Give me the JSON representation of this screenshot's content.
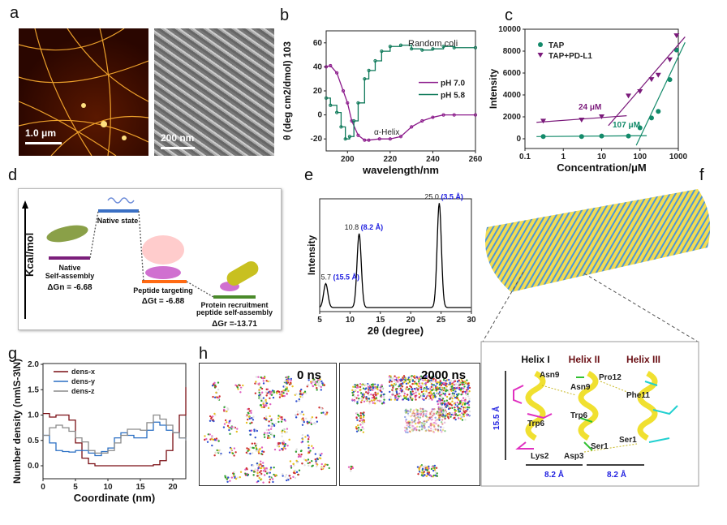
{
  "panel_labels": [
    "a",
    "b",
    "c",
    "d",
    "e",
    "f",
    "g",
    "h"
  ],
  "panel_a": {
    "afm_scale": "1.0 μm",
    "sem_scale": "200 nm"
  },
  "panel_d": {
    "ylabel": "Kcal/mol",
    "native_state": "Native state",
    "native_sa_1": "Native",
    "native_sa_2": "Self-assembly",
    "dgn": "ΔGn = -6.68",
    "targeting": "Peptide targeting",
    "dgt": "ΔGt = -6.88",
    "recruit_1": "Protein recruitment",
    "recruit_2": "peptide self-assembly",
    "dgr": "ΔGr =-13.71",
    "colors": {
      "native_sa": "#7b1f7b",
      "native_state": "#3a6fc4",
      "targeting": "#ff6a13",
      "recruit": "#4a8a2a"
    }
  },
  "panel_f": {
    "helix1": "Helix I",
    "helix2": "Helix II",
    "helix3": "Helix III",
    "height": "15.5 Å",
    "width1": "8.2 Å",
    "width2": "8.2 Å",
    "residues": [
      "Asn9",
      "Asn9",
      "Pro12",
      "Phe11",
      "Trp6",
      "Trp6",
      "Lys2",
      "Asp3",
      "Ser1",
      "Ser1"
    ]
  },
  "panel_h": {
    "t0": "0 ns",
    "t1": "2000 ns"
  },
  "chart_data": [
    {
      "panel": "b",
      "type": "line",
      "xlabel": "wavelength/nm",
      "ylabel": "θ (deg cm2/dmol) 103",
      "xlim": [
        190,
        260
      ],
      "ylim": [
        -30,
        70
      ],
      "xticks": [
        200,
        220,
        240,
        260
      ],
      "yticks": [
        -20,
        0,
        20,
        40,
        60
      ],
      "legend": "center-right",
      "annotations": [
        "Random coli",
        "α-Helix"
      ],
      "series": [
        {
          "name": "pH 7.0",
          "color": "#8b1a8b",
          "x": [
            190,
            192,
            195,
            198,
            200,
            202,
            205,
            208,
            210,
            215,
            220,
            225,
            230,
            235,
            240,
            245,
            250,
            260
          ],
          "y": [
            40,
            41,
            35,
            20,
            10,
            -5,
            -17,
            -21,
            -21,
            -20,
            -20,
            -18,
            -10,
            -5,
            -2,
            0,
            0,
            0
          ]
        },
        {
          "name": "pH 5.8",
          "color": "#0f7a5a",
          "x": [
            190,
            192,
            195,
            197,
            199,
            201,
            203,
            205,
            208,
            210,
            213,
            216,
            220,
            225,
            230,
            235,
            240,
            245,
            250,
            260
          ],
          "y": [
            14,
            8,
            2,
            -10,
            -20,
            -18,
            -5,
            10,
            30,
            37,
            45,
            53,
            57,
            58,
            55,
            54,
            55,
            57,
            56,
            56
          ]
        }
      ]
    },
    {
      "panel": "c",
      "type": "scatter",
      "xlabel": "Concentration/μM",
      "ylabel": "Intensity",
      "xscale": "log",
      "xlim": [
        0.1,
        1500
      ],
      "ylim": [
        -1000,
        10000
      ],
      "xticks": [
        "0.1",
        "1",
        "10",
        "100",
        "1000"
      ],
      "yticks": [
        0,
        2000,
        4000,
        6000,
        8000,
        10000
      ],
      "legend": "top-left",
      "annotations": [
        "24 μM",
        "107 μM"
      ],
      "series": [
        {
          "name": "TAP",
          "marker": "circle",
          "color": "#138a6a",
          "x": [
            0.3,
            3,
            10,
            50,
            100,
            200,
            300,
            600,
            900
          ],
          "y": [
            200,
            200,
            250,
            250,
            1000,
            1900,
            2500,
            5400,
            8100
          ],
          "fit_lines": [
            [
              [
                0.2,
                200
              ],
              [
                150,
                280
              ]
            ],
            [
              [
                80,
                -600
              ],
              [
                1500,
                8800
              ]
            ]
          ]
        },
        {
          "name": "TAP+PD-L1",
          "marker": "triangle-down",
          "color": "#7b1a7b",
          "x": [
            0.3,
            3,
            10,
            50,
            100,
            200,
            300,
            600,
            900
          ],
          "y": [
            1600,
            1700,
            2000,
            3900,
            4300,
            5400,
            5800,
            7200,
            9400
          ],
          "fit_lines": [
            [
              [
                0.2,
                1500
              ],
              [
                45,
                2100
              ]
            ],
            [
              [
                15,
                1200
              ],
              [
                1500,
                9300
              ]
            ]
          ]
        }
      ]
    },
    {
      "panel": "e",
      "type": "line",
      "xlabel": "2θ (degree)",
      "ylabel": "Intensity",
      "xlim": [
        5,
        30
      ],
      "xticks": [
        5,
        10,
        15,
        20,
        25,
        30
      ],
      "peaks": [
        {
          "x": 6.0,
          "rel_intensity": 0.22,
          "label": "5.7",
          "d": "(15.5 Å)"
        },
        {
          "x": 11.5,
          "rel_intensity": 0.68,
          "label": "10.8",
          "d": "(8.2 Å)"
        },
        {
          "x": 24.7,
          "rel_intensity": 0.96,
          "label": "25.0",
          "d": "(3.5 Å)"
        }
      ]
    },
    {
      "panel": "g",
      "type": "line",
      "xlabel": "Coordinate (nm)",
      "ylabel": "Number density (nm\\S-3\\N)",
      "xlim": [
        0,
        22
      ],
      "ylim": [
        -0.25,
        2.0
      ],
      "xticks": [
        0,
        5,
        10,
        15,
        20
      ],
      "yticks": [
        "0.0",
        "0.5",
        "1.0",
        "1.5",
        "2.0"
      ],
      "legend": "top-left",
      "x": [
        0,
        1,
        2,
        3,
        4,
        5,
        6,
        7,
        8,
        9,
        10,
        11,
        12,
        13,
        14,
        15,
        16,
        17,
        18,
        19,
        20,
        21,
        22
      ],
      "series": [
        {
          "name": "dens-x",
          "color": "#7a0f14",
          "y": [
            1.03,
            0.96,
            1.0,
            1.0,
            0.9,
            0.45,
            0.15,
            0.04,
            0,
            0,
            0,
            0,
            0,
            0,
            0,
            0,
            0,
            0.02,
            0.1,
            0.3,
            0.65,
            1.0,
            1.55
          ]
        },
        {
          "name": "dens-y",
          "color": "#2a6fc4",
          "y": [
            0.6,
            0.45,
            0.3,
            0.28,
            0.27,
            0.3,
            0.3,
            0.25,
            0.2,
            0.28,
            0.35,
            0.55,
            0.65,
            0.6,
            0.55,
            0.55,
            0.7,
            0.86,
            0.8,
            0.7,
            0.65,
            0.55,
            0.52
          ]
        },
        {
          "name": "dens-z",
          "color": "#8a8a8a",
          "y": [
            0.6,
            0.75,
            0.8,
            0.75,
            0.68,
            0.55,
            0.47,
            0.3,
            0.25,
            0.25,
            0.3,
            0.45,
            0.6,
            0.72,
            0.72,
            0.7,
            0.85,
            1.0,
            0.92,
            0.8,
            0.65,
            0.55,
            0.5
          ]
        }
      ]
    }
  ]
}
